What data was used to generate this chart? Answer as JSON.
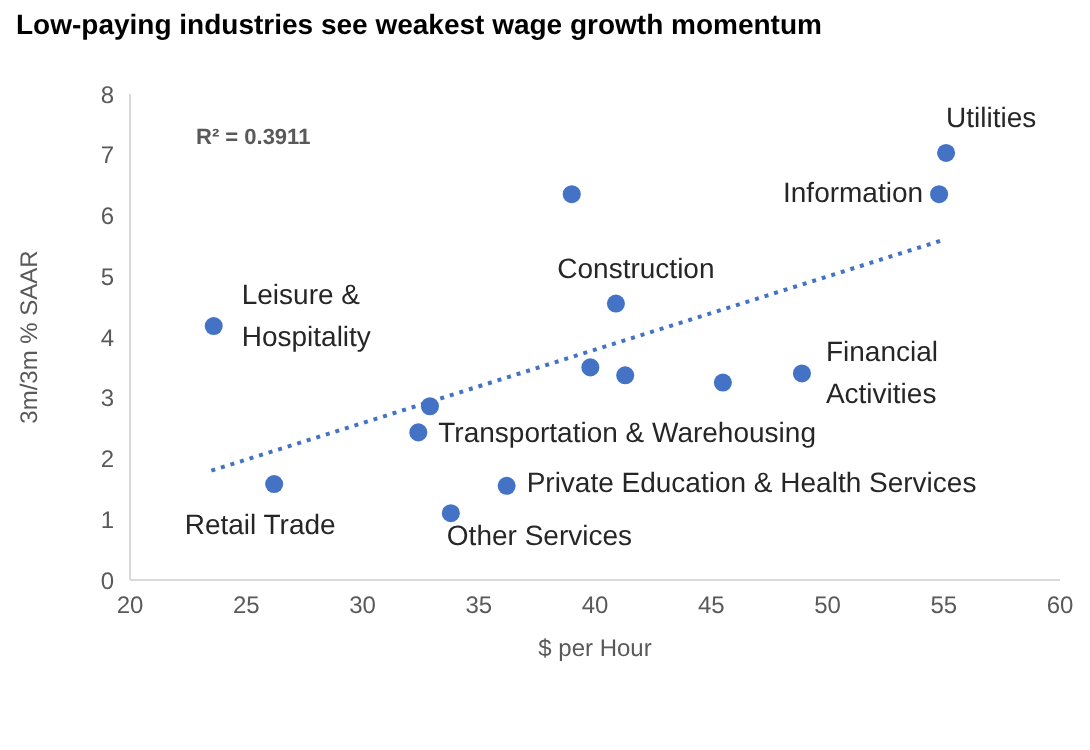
{
  "chart_data": {
    "type": "scatter",
    "title": "Low-paying industries see weakest wage growth momentum",
    "xlabel": "$ per Hour",
    "ylabel": "3m/3m % SAAR",
    "xlim": [
      20,
      60
    ],
    "xticks": [
      20,
      25,
      30,
      35,
      40,
      45,
      50,
      55,
      60
    ],
    "ylim": [
      0,
      8
    ],
    "yticks": [
      0,
      1,
      2,
      3,
      4,
      5,
      6,
      7,
      8
    ],
    "grid": false,
    "series": [
      {
        "color": "#4472c4",
        "marker": "circle",
        "x": [
          23.6,
          26.2,
          32.9,
          32.4,
          33.8,
          36.2,
          39.0,
          40.9,
          39.8,
          41.3,
          45.5,
          48.9,
          54.8,
          55.1
        ],
        "values": [
          4.18,
          1.58,
          2.86,
          2.43,
          1.1,
          1.55,
          6.35,
          4.55,
          3.5,
          3.37,
          3.25,
          3.4,
          6.35,
          7.03
        ]
      },
      {
        "type": "line",
        "color": "#4472c4",
        "marker": "none",
        "line_style": "dotted",
        "x": [
          23.5,
          55
        ],
        "values": [
          1.8,
          5.6
        ]
      }
    ],
    "annotations": [
      "R² = 0.3911",
      {
        "text": "Utilities",
        "x": 55.1,
        "y": 7.03
      },
      {
        "text": "Information",
        "x": 54.8,
        "y": 6.35
      },
      {
        "text": "Construction",
        "x": 40.9,
        "y": 4.55
      },
      {
        "text": "Leisure & Hospitality",
        "x": 23.6,
        "y": 4.18
      },
      {
        "text": "Financial Activities",
        "x": 48.9,
        "y": 3.4
      },
      {
        "text": "Transportation & Warehousing",
        "x": 32.4,
        "y": 2.43
      },
      {
        "text": "Private Education & Health Services",
        "x": 36.2,
        "y": 1.55
      },
      {
        "text": "Other Services",
        "x": 33.8,
        "y": 1.1
      },
      {
        "text": "Retail Trade",
        "x": 26.2,
        "y": 1.58
      }
    ]
  }
}
